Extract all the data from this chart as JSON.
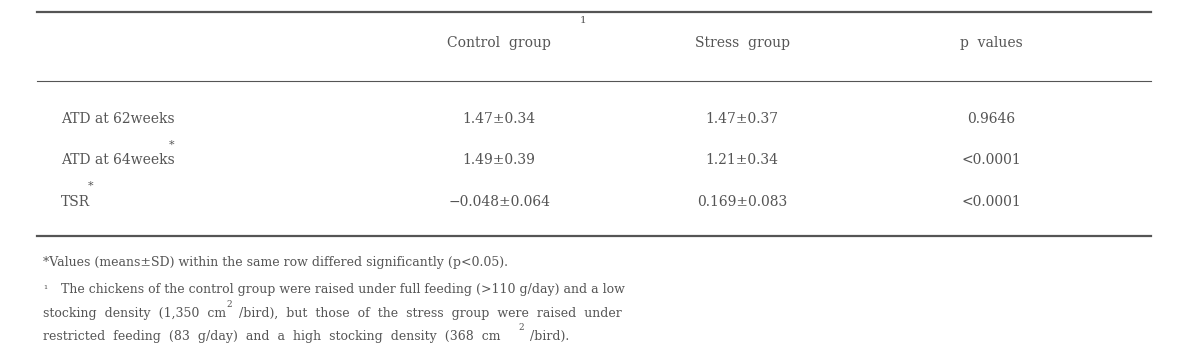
{
  "col_headers": [
    "",
    "Control group",
    "Stress group",
    "p values"
  ],
  "rows": [
    [
      "ATD at 62weeks",
      "1.47±0.34",
      "1.47±0.37",
      "0.9646"
    ],
    [
      "ATD at 64weeks",
      "1.49±0.39",
      "1.21±0.34",
      "<0.0001"
    ],
    [
      "TSR",
      "−0.048±0.064",
      "0.169±0.083",
      "<0.0001"
    ]
  ],
  "row_has_star": [
    false,
    true,
    true
  ],
  "bg_color": "#ffffff",
  "text_color": "#555555",
  "font_size": 10,
  "footnote_font_size": 9
}
